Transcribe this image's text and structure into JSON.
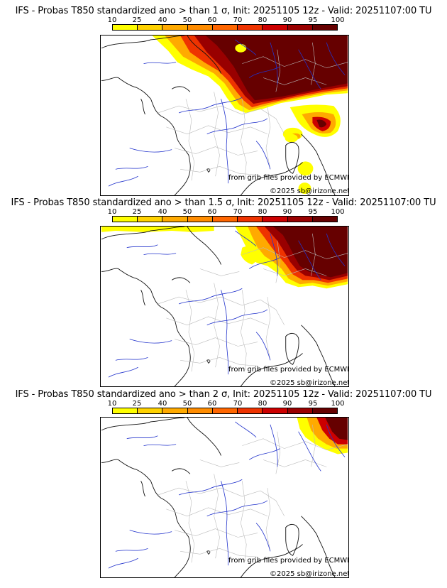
{
  "palette": {
    "colors": [
      "#ffff00",
      "#ffd200",
      "#ffaa00",
      "#ff8c00",
      "#ff6600",
      "#ee3300",
      "#cc0000",
      "#990000",
      "#660000"
    ],
    "ticks": [
      "10",
      "25",
      "40",
      "50",
      "60",
      "70",
      "80",
      "90",
      "95",
      "100"
    ]
  },
  "credits": {
    "source": "from grib files provided by ECMWF",
    "copyright": "©2025 sb@irizone.net"
  },
  "panels": [
    {
      "title": "IFS - Probas T850  standardized ano > than 1 σ, Init: 20251105 12z - Valid: 20251107:00 TU",
      "threshold_sigma": 1
    },
    {
      "title": "IFS - Probas T850  standardized ano > than 1.5 σ, Init: 20251105 12z - Valid: 20251107:00 TU",
      "threshold_sigma": 1.5
    },
    {
      "title": "IFS - Probas T850  standardized ano > than 2 σ, Init: 20251105 12z - Valid: 20251107:00 TU",
      "threshold_sigma": 2
    }
  ]
}
